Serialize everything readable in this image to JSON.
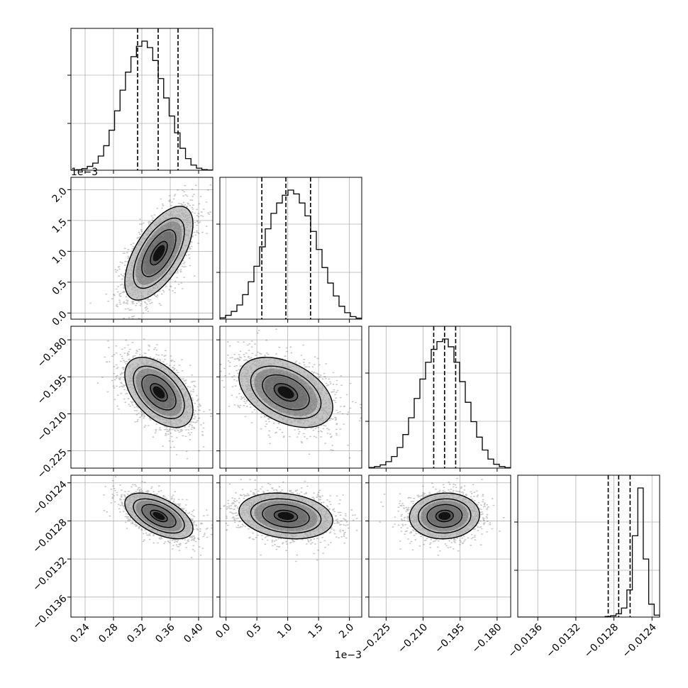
{
  "chart_data": {
    "type": "scatter",
    "title": "",
    "grid": true,
    "parameters": [
      {
        "range": [
          0.22,
          0.42
        ],
        "ticks": [
          0.24,
          0.28,
          0.32,
          0.36,
          0.4
        ],
        "tick_labels": [
          "0.24",
          "0.28",
          "0.32",
          "0.36",
          "0.40"
        ],
        "exponent_label": "",
        "mean": 0.344,
        "sd": 0.024,
        "quantiles": [
          0.314,
          0.343,
          0.371
        ]
      },
      {
        "range": [
          -0.0001,
          0.0022
        ],
        "ticks": [
          0.0,
          0.0005,
          0.001,
          0.0015,
          0.002
        ],
        "tick_labels": [
          "0.0",
          "0.5",
          "1.0",
          "1.5",
          "2.0"
        ],
        "exponent_label": "1e−3",
        "mean": 0.00097,
        "sd": 0.00038,
        "quantiles": [
          0.00058,
          0.00097,
          0.00137
        ]
      },
      {
        "range": [
          -0.232,
          -0.1745
        ],
        "ticks": [
          -0.225,
          -0.21,
          -0.195,
          -0.18
        ],
        "tick_labels": [
          "−0.225",
          "−0.210",
          "−0.195",
          "−0.180"
        ],
        "exponent_label": "",
        "mean": -0.2013,
        "sd": 0.0071,
        "quantiles": [
          -0.2057,
          -0.2013,
          -0.1968
        ]
      },
      {
        "range": [
          -0.01381,
          -0.01232
        ],
        "ticks": [
          -0.0136,
          -0.0132,
          -0.0128,
          -0.0124
        ],
        "tick_labels": [
          "−0.0136",
          "−0.0132",
          "−0.0128",
          "−0.0124"
        ],
        "exponent_label": "",
        "mean": -0.012748,
        "sd": 0.00012,
        "quantiles": [
          -0.01286,
          -0.01275,
          -0.01263
        ]
      }
    ],
    "histograms": {
      "0": [
        0.001,
        0.004,
        0.012,
        0.03,
        0.055,
        0.11,
        0.19,
        0.31,
        0.46,
        0.62,
        0.76,
        0.88,
        0.96,
        1.0,
        0.95,
        0.85,
        0.71,
        0.56,
        0.42,
        0.29,
        0.17,
        0.09,
        0.04,
        0.016,
        0.005,
        0.002
      ],
      "1": [
        0.01,
        0.03,
        0.06,
        0.11,
        0.19,
        0.29,
        0.41,
        0.56,
        0.7,
        0.82,
        0.9,
        0.96,
        1.0,
        0.97,
        0.9,
        0.8,
        0.68,
        0.54,
        0.4,
        0.28,
        0.18,
        0.1,
        0.05,
        0.02,
        0.008
      ],
      "2": [
        0.005,
        0.012,
        0.025,
        0.05,
        0.09,
        0.16,
        0.26,
        0.39,
        0.54,
        0.69,
        0.82,
        0.92,
        0.98,
        1.0,
        0.94,
        0.82,
        0.67,
        0.51,
        0.36,
        0.24,
        0.14,
        0.07,
        0.03,
        0.012,
        0.004
      ],
      "3": [
        0,
        0,
        0,
        0,
        0,
        0,
        0,
        0,
        0,
        0,
        0,
        0,
        0,
        0,
        0,
        0,
        0.005,
        0.01,
        0.025,
        0.07,
        0.21,
        0.63,
        1.0,
        0.45,
        0.1,
        0.015
      ]
    },
    "pairs": [
      {
        "row": 1,
        "col": 0,
        "correlation": 0.62
      },
      {
        "row": 2,
        "col": 0,
        "correlation": -0.5
      },
      {
        "row": 2,
        "col": 1,
        "correlation": -0.42
      },
      {
        "row": 3,
        "col": 0,
        "correlation": -0.55
      },
      {
        "row": 3,
        "col": 1,
        "correlation": -0.2
      },
      {
        "row": 3,
        "col": 2,
        "correlation": 0.05
      }
    ],
    "contour_levels": [
      0.118,
      0.393,
      0.675,
      0.865
    ],
    "style": {
      "histogram_color": "#000000",
      "density_color": "#000000",
      "point_color": "#000000",
      "grid_color": "#b0b0b0"
    }
  }
}
